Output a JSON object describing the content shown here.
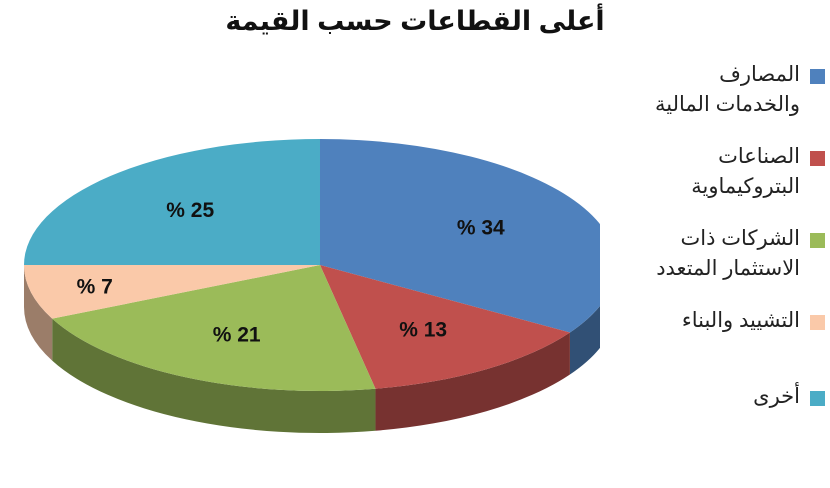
{
  "chart_data": {
    "type": "pie",
    "style": "3d",
    "title": "أعلى القطاعات حسب القيمة",
    "categories": [
      "المصارف والخدمات المالية",
      "الصناعات البتروكيماوية",
      "الشركات ذات الاستثمار المتعدد",
      "التشييد والبناء",
      "أخرى"
    ],
    "values": [
      34,
      13,
      21,
      7,
      25
    ],
    "value_labels": [
      "% 34",
      "% 13",
      "% 21",
      "% 7",
      "% 25"
    ],
    "colors": [
      "#4F81BD",
      "#C0504D",
      "#9BBB59",
      "#FAC9A9",
      "#4BACC6"
    ],
    "legend": {
      "position": "right",
      "items": [
        [
          "المصارف",
          "والخدمات المالية"
        ],
        [
          "الصناعات",
          "البتروكيماوية"
        ],
        [
          "الشركات ذات",
          "الاستثمار المتعدد"
        ],
        [
          "التشييد والبناء"
        ],
        [
          "أخرى"
        ]
      ]
    }
  }
}
